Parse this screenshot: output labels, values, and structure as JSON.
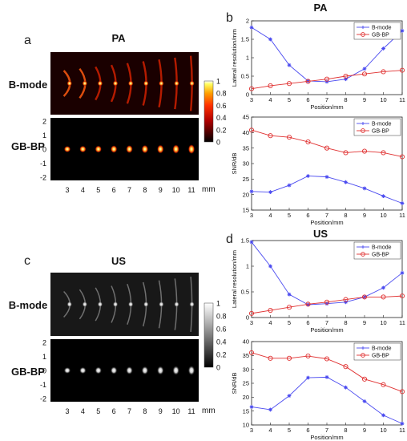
{
  "panels": {
    "a": {
      "letter": "a",
      "title": "PA",
      "row1_label": "B-mode",
      "row2_label": "GB-BP",
      "y_ticks": [
        "2",
        "1",
        "0",
        "-1",
        "-2"
      ],
      "x_ticks": [
        "3",
        "4",
        "5",
        "6",
        "7",
        "8",
        "9",
        "10",
        "11"
      ],
      "x_unit": "mm",
      "colorbar_ticks": [
        "1",
        "0.8",
        "0.6",
        "0.4",
        "0.2",
        "0"
      ],
      "colormap": "hot"
    },
    "c": {
      "letter": "c",
      "title": "US",
      "row1_label": "B-mode",
      "row2_label": "GB-BP",
      "y_ticks": [
        "2",
        "1",
        "0",
        "-1",
        "-2"
      ],
      "x_ticks": [
        "3",
        "4",
        "5",
        "6",
        "7",
        "8",
        "9",
        "10",
        "11"
      ],
      "x_unit": "mm",
      "colorbar_ticks": [
        "1",
        "0.8",
        "0.6",
        "0.4",
        "0.2",
        "0"
      ],
      "colormap": "gray"
    },
    "b": {
      "letter": "b",
      "title": "PA"
    },
    "d": {
      "letter": "d",
      "title": "US"
    }
  },
  "colors": {
    "bmode": "#4a4af0",
    "gbbp": "#e03030"
  },
  "chart_data": [
    {
      "id": "b-top",
      "type": "line",
      "ylabel": "Lateral resolution/mm",
      "xlabel": "Position/mm",
      "xlim": [
        3,
        11
      ],
      "ylim": [
        0,
        2
      ],
      "yticks": [
        0,
        0.5,
        1,
        1.5,
        2
      ],
      "xticks": [
        3,
        4,
        5,
        6,
        7,
        8,
        9,
        10,
        11
      ],
      "legend": "top-right",
      "x": [
        3,
        4,
        5,
        6,
        7,
        8,
        9,
        10,
        11
      ],
      "series": [
        {
          "name": "B-mode",
          "marker": "star",
          "values": [
            1.82,
            1.5,
            0.8,
            0.37,
            0.35,
            0.42,
            0.7,
            1.25,
            1.73
          ]
        },
        {
          "name": "GB-BP",
          "marker": "circle",
          "values": [
            0.16,
            0.24,
            0.3,
            0.36,
            0.42,
            0.5,
            0.56,
            0.62,
            0.66
          ]
        }
      ]
    },
    {
      "id": "b-bottom",
      "type": "line",
      "ylabel": "SNR/dB",
      "xlabel": "Position/mm",
      "xlim": [
        3,
        11
      ],
      "ylim": [
        15,
        45
      ],
      "yticks": [
        15,
        20,
        25,
        30,
        35,
        40,
        45
      ],
      "xticks": [
        3,
        4,
        5,
        6,
        7,
        8,
        9,
        10,
        11
      ],
      "legend": "top-right",
      "x": [
        3,
        4,
        5,
        6,
        7,
        8,
        9,
        10,
        11
      ],
      "series": [
        {
          "name": "B-mode",
          "marker": "star",
          "values": [
            21,
            20.8,
            23,
            26,
            25.7,
            24,
            22,
            19.5,
            17.2
          ]
        },
        {
          "name": "GB-BP",
          "marker": "circle",
          "values": [
            40.8,
            39,
            38.5,
            37,
            35,
            33.5,
            34,
            33.5,
            32.2
          ]
        }
      ]
    },
    {
      "id": "d-top",
      "type": "line",
      "ylabel": "Lateral resolution/mm",
      "xlabel": "Position/mm",
      "xlim": [
        3,
        11
      ],
      "ylim": [
        0,
        1.5
      ],
      "yticks": [
        0,
        0.5,
        1,
        1.5
      ],
      "xticks": [
        3,
        4,
        5,
        6,
        7,
        8,
        9,
        10,
        11
      ],
      "legend": "top-right",
      "x": [
        3,
        4,
        5,
        6,
        7,
        8,
        9,
        10,
        11
      ],
      "series": [
        {
          "name": "B-mode",
          "marker": "star",
          "values": [
            1.47,
            1.0,
            0.45,
            0.25,
            0.27,
            0.3,
            0.4,
            0.58,
            0.87
          ]
        },
        {
          "name": "GB-BP",
          "marker": "circle",
          "values": [
            0.08,
            0.14,
            0.2,
            0.26,
            0.3,
            0.35,
            0.4,
            0.4,
            0.42
          ]
        }
      ]
    },
    {
      "id": "d-bottom",
      "type": "line",
      "ylabel": "SNR/dB",
      "xlabel": "Position/mm",
      "xlim": [
        3,
        11
      ],
      "ylim": [
        10,
        40
      ],
      "yticks": [
        10,
        15,
        20,
        25,
        30,
        35,
        40
      ],
      "xticks": [
        3,
        4,
        5,
        6,
        7,
        8,
        9,
        10,
        11
      ],
      "legend": "top-right",
      "x": [
        3,
        4,
        5,
        6,
        7,
        8,
        9,
        10,
        11
      ],
      "series": [
        {
          "name": "B-mode",
          "marker": "star",
          "values": [
            16.5,
            15.5,
            20.5,
            27,
            27.2,
            23.5,
            18.5,
            13.5,
            10.5
          ]
        },
        {
          "name": "GB-BP",
          "marker": "circle",
          "values": [
            36,
            34,
            34,
            34.8,
            33.8,
            31,
            26.5,
            24.5,
            22
          ]
        }
      ]
    }
  ]
}
